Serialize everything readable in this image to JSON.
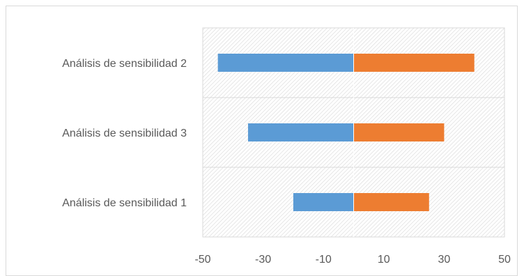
{
  "chart_data": {
    "type": "bar",
    "orientation": "horizontal",
    "stacked": true,
    "categories": [
      "Análisis de sensibilidad 2",
      "Análisis de sensibilidad 3",
      "Análisis de sensibilidad 1"
    ],
    "series": [
      {
        "values": [
          -45,
          -35,
          -20
        ],
        "color": "#5b9bd5"
      },
      {
        "values": [
          40,
          30,
          25
        ],
        "color": "#ed7d31"
      }
    ],
    "xlim": [
      -50,
      50
    ],
    "xticks": [
      "-50",
      "-30",
      "-10",
      "10",
      "30",
      "50"
    ],
    "xtick_values": [
      -50,
      -30,
      -10,
      10,
      30,
      50
    ],
    "grid": true,
    "plot_fill": "diagonal-hatch",
    "legend": "none",
    "title": "",
    "xlabel": "",
    "ylabel": ""
  }
}
